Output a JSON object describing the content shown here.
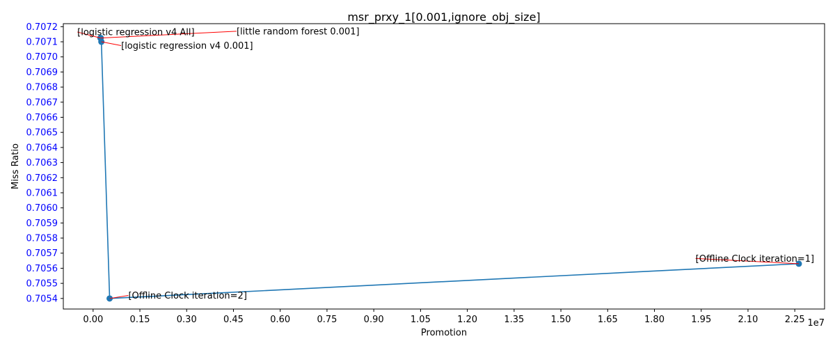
{
  "chart_data": {
    "type": "line",
    "title": "msr_prxy_1[0.001,ignore_obj_size]",
    "xlabel": "Promotion",
    "ylabel": "Miss Ratio",
    "x_offset_text": "1e7",
    "xlim": [
      -0.0955,
      2.3455
    ],
    "ylim": [
      0.70533,
      0.70722
    ],
    "xticks": [
      0.0,
      0.15,
      0.3,
      0.45,
      0.6,
      0.75,
      0.9,
      1.05,
      1.2,
      1.35,
      1.5,
      1.65,
      1.8,
      1.95,
      2.1,
      2.25
    ],
    "xtick_labels": [
      "0.00",
      "0.15",
      "0.30",
      "0.45",
      "0.60",
      "0.75",
      "0.90",
      "1.05",
      "1.20",
      "1.35",
      "1.50",
      "1.65",
      "1.80",
      "1.95",
      "2.10",
      "2.25"
    ],
    "yticks": [
      0.7054,
      0.7055,
      0.7056,
      0.7057,
      0.7058,
      0.7059,
      0.706,
      0.7061,
      0.7062,
      0.7063,
      0.7064,
      0.7065,
      0.7066,
      0.7067,
      0.7068,
      0.7069,
      0.707,
      0.7071,
      0.7072
    ],
    "ytick_labels": [
      "0.7054",
      "0.7055",
      "0.7056",
      "0.7057",
      "0.7058",
      "0.7059",
      "0.7060",
      "0.7061",
      "0.7062",
      "0.7063",
      "0.7064",
      "0.7065",
      "0.7066",
      "0.7067",
      "0.7068",
      "0.7069",
      "0.7070",
      "0.7071",
      "0.7072"
    ],
    "ytick_color": "#0000ff",
    "line_color": "#1f77b4",
    "annotation_arrow_color": "#ff0000",
    "grid": false,
    "series": [
      {
        "x": [
          0.0235,
          0.0245,
          0.0265,
          0.053,
          2.263
        ],
        "y": [
          0.707125,
          0.707125,
          0.7071,
          0.7054,
          0.70563
        ]
      }
    ],
    "annotations": [
      {
        "text": "[logistic regression v4 All]",
        "point_index": 0,
        "tx": -0.0505,
        "ty": 0.707165,
        "anchor": "start"
      },
      {
        "text": "[little random forest 0.001]",
        "point_index": 1,
        "tx": 0.46,
        "ty": 0.70717,
        "anchor": "start"
      },
      {
        "text": "[logistic regression v4 0.001]",
        "point_index": 2,
        "tx": 0.09,
        "ty": 0.707075,
        "anchor": "start"
      },
      {
        "text": "[Offline Clock iteration=2]",
        "point_index": 3,
        "tx": 0.113,
        "ty": 0.70542,
        "anchor": "start"
      },
      {
        "text": "[Offline Clock iteration=1]",
        "point_index": 4,
        "tx": 1.932,
        "ty": 0.705665,
        "anchor": "start"
      }
    ]
  }
}
